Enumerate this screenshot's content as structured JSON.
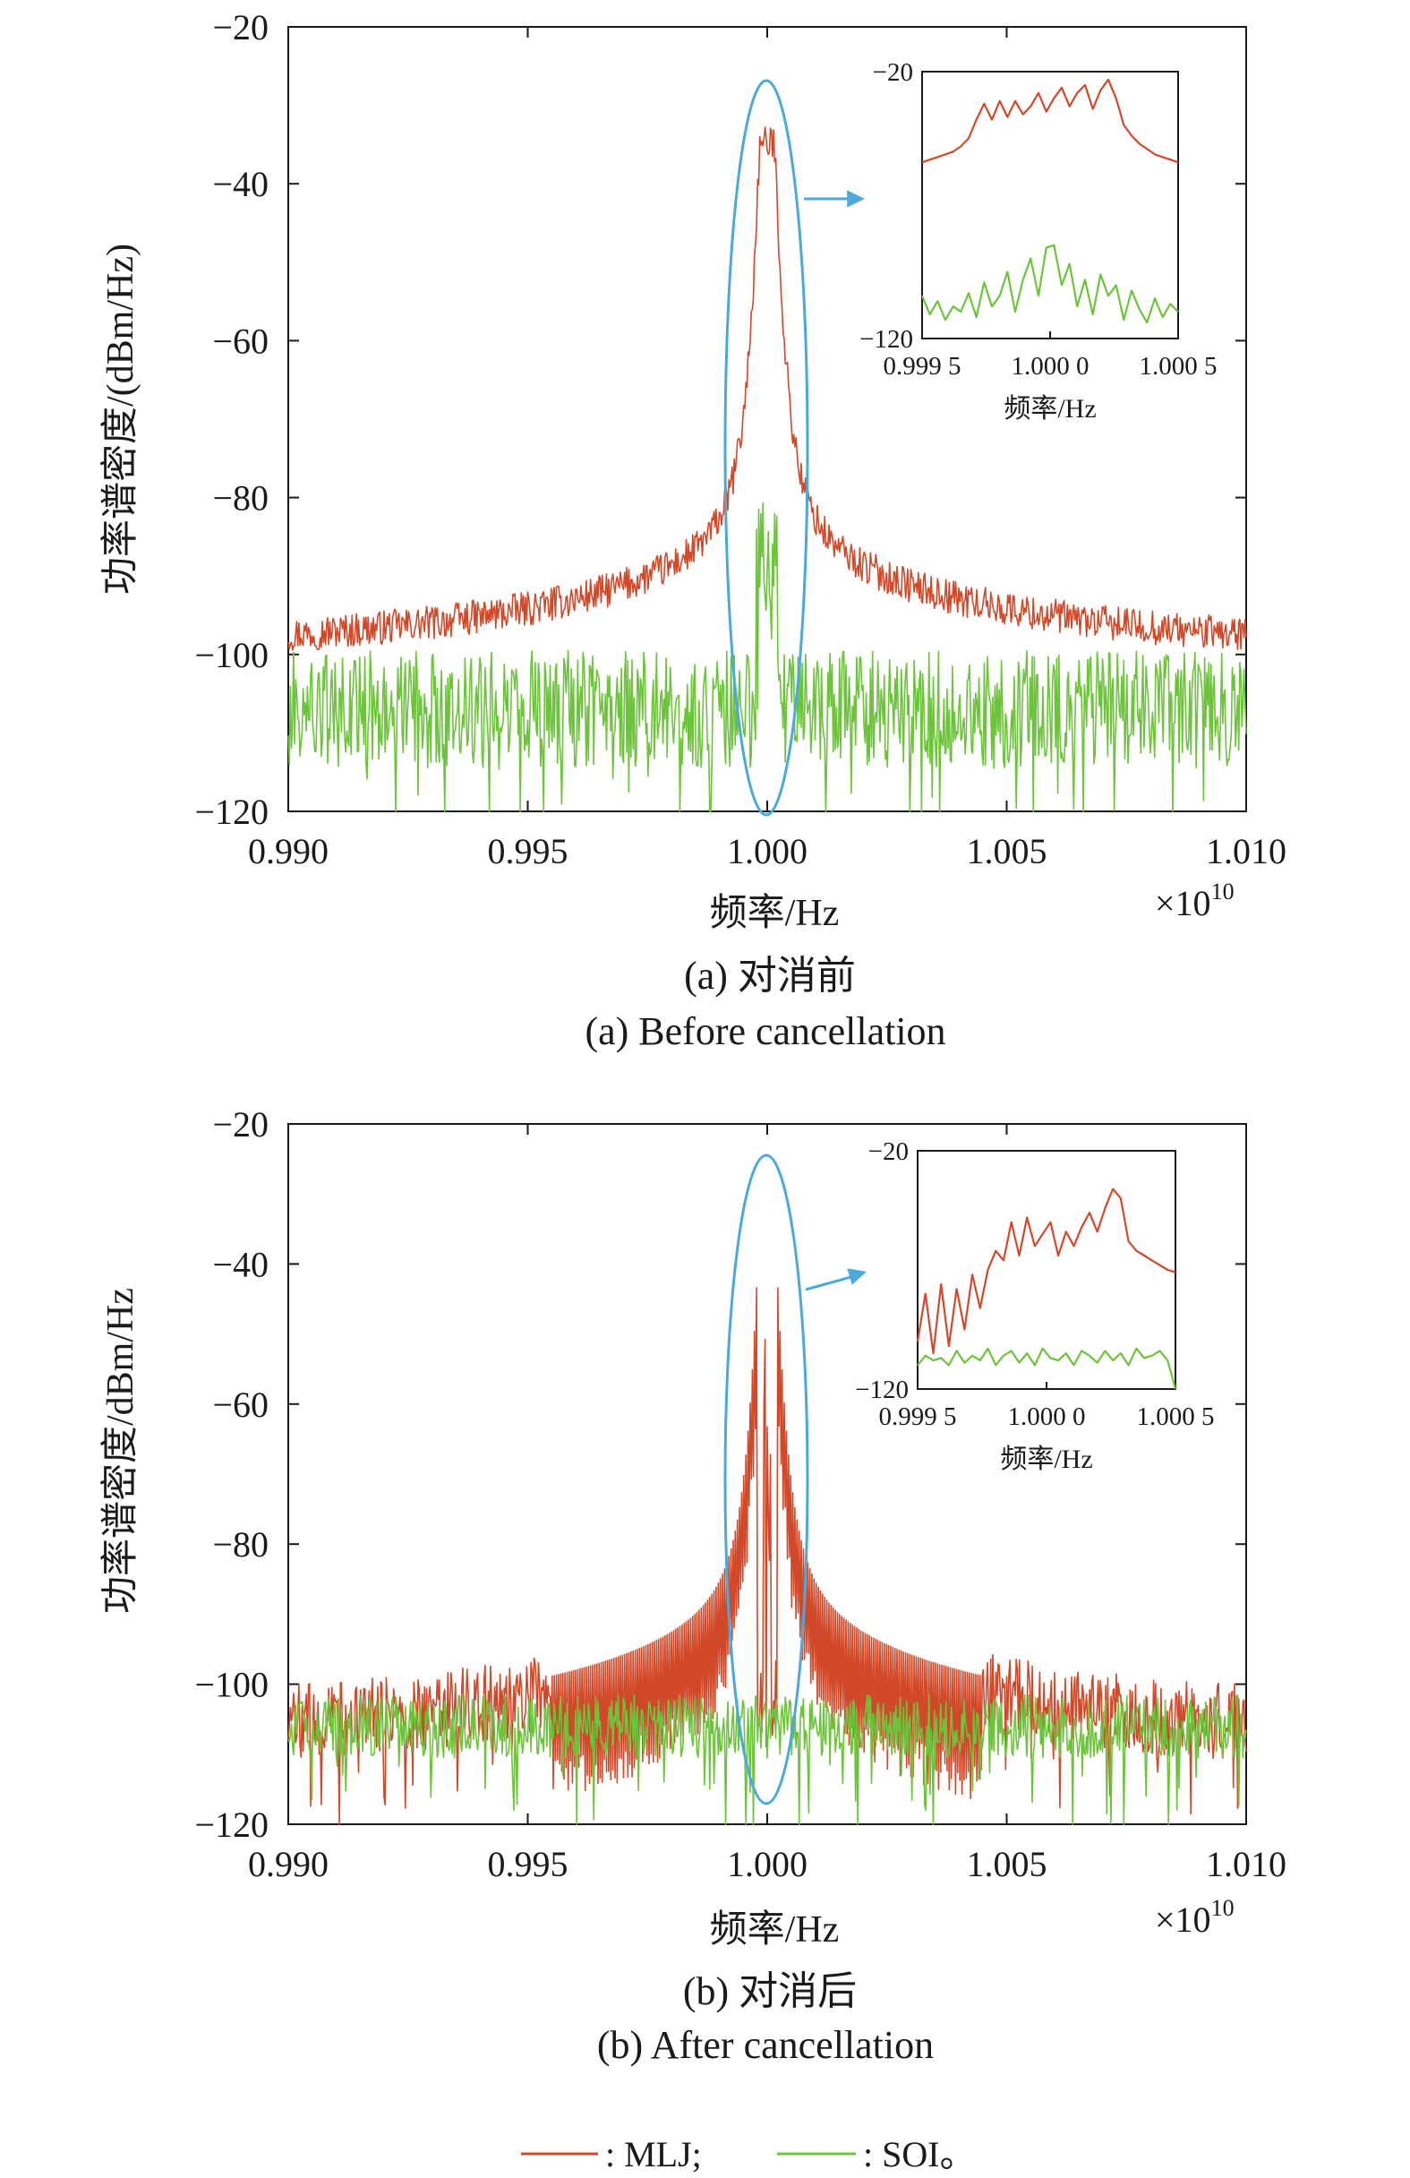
{
  "colors": {
    "mlj": "#d2492a",
    "soi": "#6cc43a",
    "highlight": "#4ba9dc",
    "axis": "#1a1a1a"
  },
  "legend": [
    {
      "key": "mlj",
      "label": ": MLJ;"
    },
    {
      "key": "soi",
      "label": ": SOI。"
    }
  ],
  "chart_data": [
    {
      "type": "line",
      "id": "a",
      "caption_cn": "(a) 对消前",
      "caption_en": "(a) Before cancellation",
      "ylabel": "功率谱密度/(dBm/Hz)",
      "xlabel": "频率/Hz",
      "x_multiplier": "×10",
      "x_multiplier_exp": "10",
      "xlim": [
        0.99,
        1.01
      ],
      "ylim": [
        -120,
        -20
      ],
      "xticks": [
        "0.990",
        "0.995",
        "1.000",
        "1.005",
        "1.010"
      ],
      "yticks": [
        "−20",
        "−40",
        "−60",
        "−80",
        "−100",
        "−120"
      ],
      "series": [
        {
          "key": "mlj",
          "name": "MLJ",
          "profile": "lorentzian",
          "center": 1.0,
          "peak": -35,
          "floor": -99,
          "noise": 2.2,
          "core_width": 0.0003
        },
        {
          "key": "soi",
          "name": "SOI",
          "profile": "flat",
          "center": 1.0,
          "peak": -87,
          "floor": -107,
          "noise": 7.5,
          "core_width": 0.00012
        }
      ],
      "inset": {
        "xlabel": "频率/Hz",
        "xticks": [
          "0.999 5",
          "1.000 0",
          "1.000 5"
        ],
        "yticks": [
          "−20",
          "−120"
        ],
        "series": [
          {
            "key": "mlj",
            "y": [
              -54,
              -53,
              -52,
              -51,
              -50,
              -48,
              -45,
              -38,
              -32,
              -38,
              -31,
              -37,
              -31,
              -36,
              -33,
              -28,
              -35,
              -30,
              -26,
              -33,
              -28,
              -25,
              -34,
              -27,
              -23,
              -30,
              -40,
              -44,
              -47,
              -49,
              -51,
              -52,
              -53,
              -54
            ]
          },
          {
            "key": "soi",
            "y": [
              -104,
              -111,
              -106,
              -113,
              -108,
              -110,
              -103,
              -112,
              -99,
              -108,
              -104,
              -95,
              -110,
              -98,
              -90,
              -104,
              -86,
              -85,
              -100,
              -92,
              -108,
              -98,
              -111,
              -96,
              -104,
              -100,
              -113,
              -102,
              -109,
              -114,
              -105,
              -112,
              -107,
              -110
            ]
          }
        ]
      }
    },
    {
      "type": "line",
      "id": "b",
      "caption_cn": "(b) 对消后",
      "caption_en": "(b) After cancellation",
      "ylabel": "功率谱密度/dBm/Hz",
      "xlabel": "频率/Hz",
      "x_multiplier": "×10",
      "x_multiplier_exp": "10",
      "xlim": [
        0.99,
        1.01
      ],
      "ylim": [
        -120,
        -20
      ],
      "xticks": [
        "0.990",
        "0.995",
        "1.000",
        "1.005",
        "1.010"
      ],
      "yticks": [
        "−20",
        "−40",
        "−60",
        "−80",
        "−100",
        "−120"
      ],
      "series": [
        {
          "key": "mlj",
          "name": "MLJ",
          "profile": "notched",
          "center": 1.0,
          "peak": -38,
          "floor": -107,
          "noise": 5.5,
          "core_width": 0.0003
        },
        {
          "key": "soi",
          "name": "SOI",
          "profile": "flat",
          "center": 1.0,
          "peak": -104,
          "floor": -106,
          "noise": 4.5,
          "core_width": 0.0001
        }
      ],
      "inset": {
        "xlabel": "频率/Hz",
        "xticks": [
          "0.999 5",
          "1.000 0",
          "1.000 5"
        ],
        "yticks": [
          "−20",
          "−120"
        ],
        "series": [
          {
            "key": "mlj",
            "y": [
              -100,
              -80,
              -105,
              -76,
              -102,
              -78,
              -95,
              -72,
              -86,
              -70,
              -62,
              -66,
              -50,
              -64,
              -48,
              -60,
              -55,
              -50,
              -64,
              -54,
              -60,
              -52,
              -46,
              -54,
              -44,
              -36,
              -40,
              -58,
              -62,
              -64,
              -66,
              -68,
              -70,
              -71
            ]
          },
          {
            "key": "soi",
            "y": [
              -110,
              -106,
              -108,
              -107,
              -110,
              -104,
              -109,
              -106,
              -108,
              -103,
              -110,
              -106,
              -104,
              -109,
              -105,
              -110,
              -103,
              -107,
              -108,
              -105,
              -110,
              -104,
              -106,
              -109,
              -104,
              -108,
              -105,
              -110,
              -103,
              -107,
              -106,
              -104,
              -108,
              -120
            ]
          }
        ]
      }
    }
  ]
}
